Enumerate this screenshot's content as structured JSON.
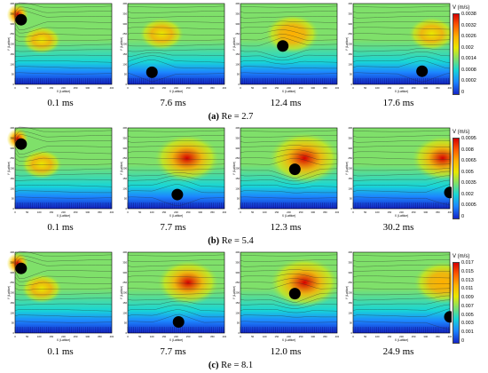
{
  "rows": [
    {
      "caption_letter": "(a)",
      "caption_text": "Re = 2.7",
      "colorbar": {
        "title": "V (m/s)",
        "ticks": [
          "0.0038",
          "0.0032",
          "0.0026",
          "0.002",
          "0.0014",
          "0.0008",
          "0.0002",
          "0"
        ]
      },
      "panels": [
        {
          "time": "0.1 ms",
          "xlabel": "X (Lattice)",
          "ylabel": "Y (Lattice)"
        },
        {
          "time": "7.6 ms",
          "xlabel": "X (Lattice)",
          "ylabel": "Y (Lattice)"
        },
        {
          "time": "12.4 ms",
          "xlabel": "X (Lattice)",
          "ylabel": "Y (Lattice)"
        },
        {
          "time": "17.6 ms",
          "xlabel": "X (Lattice)",
          "ylabel": "Y (Lattice)"
        }
      ]
    },
    {
      "caption_letter": "(b)",
      "caption_text": "Re = 5.4",
      "colorbar": {
        "title": "V (m/s)",
        "ticks": [
          "0.0095",
          "0.008",
          "0.0065",
          "0.005",
          "0.0035",
          "0.002",
          "0.0005",
          "0"
        ]
      },
      "panels": [
        {
          "time": "0.1 ms",
          "xlabel": "X (Lattice)",
          "ylabel": "Y (Lattice)"
        },
        {
          "time": "7.7 ms",
          "xlabel": "X (Lattice)",
          "ylabel": "Y (Lattice)"
        },
        {
          "time": "12.3 ms",
          "xlabel": "X (Lattice)",
          "ylabel": "Y (Lattice)"
        },
        {
          "time": "30.2 ms",
          "xlabel": "X (Lattice)",
          "ylabel": "Y (Lattice)"
        }
      ]
    },
    {
      "caption_letter": "(c)",
      "caption_text": "Re = 8.1",
      "colorbar": {
        "title": "V (m/s)",
        "ticks": [
          "0.017",
          "0.015",
          "0.013",
          "0.011",
          "0.009",
          "0.007",
          "0.005",
          "0.003",
          "0.001",
          "0"
        ]
      },
      "panels": [
        {
          "time": "0.1 ms",
          "xlabel": "X (Lattice)",
          "ylabel": "Y (Lattice)"
        },
        {
          "time": "7.7 ms",
          "xlabel": "X (Lattice)",
          "ylabel": "Y (Lattice)"
        },
        {
          "time": "12.0 ms",
          "xlabel": "X (Lattice)",
          "ylabel": "Y (Lattice)"
        },
        {
          "time": "24.9 ms",
          "xlabel": "X (Lattice)",
          "ylabel": "Y (Lattice)"
        }
      ]
    }
  ],
  "chart_data": {
    "type": "heatmap",
    "x_ticks": [
      "0",
      "50",
      "100",
      "150",
      "200",
      "250",
      "300",
      "350",
      "400"
    ],
    "y_ticks": [
      "0",
      "50",
      "100",
      "150",
      "200",
      "250",
      "300",
      "350",
      "400"
    ],
    "xlim": [
      0,
      400
    ],
    "ylim": [
      0,
      400
    ],
    "particles": [
      [
        {
          "x": 25,
          "y": 320
        },
        {
          "x": 100,
          "y": 60
        },
        {
          "x": 175,
          "y": 190
        },
        {
          "x": 285,
          "y": 65
        }
      ],
      [
        {
          "x": 25,
          "y": 320
        },
        {
          "x": 205,
          "y": 70
        },
        {
          "x": 225,
          "y": 195
        },
        {
          "x": 400,
          "y": 80
        }
      ],
      [
        {
          "x": 25,
          "y": 320
        },
        {
          "x": 210,
          "y": 55
        },
        {
          "x": 225,
          "y": 195
        },
        {
          "x": 400,
          "y": 80
        }
      ]
    ],
    "colors": {
      "high": "#d60000",
      "mid_high": "#ffb000",
      "mid": "#e8e800",
      "mid_low": "#7fe06a",
      "low": "#18d6d6",
      "lower": "#1c86ff",
      "min": "#1525c8",
      "particle": "#000000"
    }
  }
}
